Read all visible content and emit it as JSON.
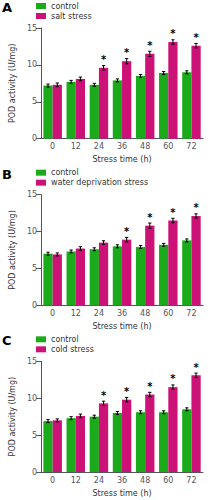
{
  "chart_data": [
    {
      "type": "bar",
      "title": "A",
      "categories": [
        "0",
        "12",
        "24",
        "36",
        "48",
        "60",
        "72"
      ],
      "series": [
        {
          "name": "control",
          "color": "#1aaa1a",
          "values": [
            7.2,
            7.7,
            7.3,
            7.9,
            8.5,
            8.9,
            9.0
          ],
          "errors": [
            0.2,
            0.2,
            0.2,
            0.2,
            0.2,
            0.2,
            0.2
          ]
        },
        {
          "name": "salt stress",
          "color": "#cc1177",
          "values": [
            7.3,
            8.1,
            9.6,
            10.5,
            11.5,
            13.1,
            12.6
          ],
          "errors": [
            0.25,
            0.25,
            0.3,
            0.35,
            0.35,
            0.3,
            0.3
          ]
        }
      ],
      "annotations": [
        {
          "text": "*",
          "category": "24",
          "series": "salt stress"
        },
        {
          "text": "*",
          "category": "36",
          "series": "salt stress"
        },
        {
          "text": "*",
          "category": "48",
          "series": "salt stress"
        },
        {
          "text": "*",
          "category": "60",
          "series": "salt stress"
        },
        {
          "text": "*",
          "category": "72",
          "series": "salt stress"
        }
      ],
      "xlabel": "Stress time (h)",
      "ylabel": "POD activity (U/mg)",
      "ylim": [
        0,
        15
      ],
      "yticks": [
        0,
        5,
        10,
        15
      ],
      "grid": false,
      "legend": "upper left"
    },
    {
      "type": "bar",
      "title": "B",
      "categories": [
        "0",
        "12",
        "24",
        "36",
        "48",
        "60",
        "72"
      ],
      "series": [
        {
          "name": "control",
          "color": "#1aaa1a",
          "values": [
            7.0,
            7.3,
            7.6,
            8.0,
            7.9,
            8.2,
            8.8
          ],
          "errors": [
            0.2,
            0.2,
            0.2,
            0.2,
            0.2,
            0.2,
            0.2
          ]
        },
        {
          "name": "water deprivation stress",
          "color": "#cc1177",
          "values": [
            6.9,
            7.7,
            8.5,
            8.9,
            10.8,
            11.5,
            12.1
          ],
          "errors": [
            0.2,
            0.25,
            0.25,
            0.3,
            0.35,
            0.3,
            0.3
          ]
        }
      ],
      "annotations": [
        {
          "text": "*",
          "category": "36",
          "series": "water deprivation stress"
        },
        {
          "text": "*",
          "category": "48",
          "series": "water deprivation stress"
        },
        {
          "text": "*",
          "category": "60",
          "series": "water deprivation stress"
        },
        {
          "text": "*",
          "category": "72",
          "series": "water deprivation stress"
        }
      ],
      "xlabel": "Stress time (h)",
      "ylabel": "POD activity (U/mg)",
      "ylim": [
        0,
        15
      ],
      "yticks": [
        0,
        5,
        10,
        15
      ],
      "grid": false,
      "legend": "upper left"
    },
    {
      "type": "bar",
      "title": "C",
      "categories": [
        "0",
        "12",
        "24",
        "36",
        "48",
        "60",
        "72"
      ],
      "series": [
        {
          "name": "control",
          "color": "#1aaa1a",
          "values": [
            6.9,
            7.3,
            7.5,
            8.0,
            8.1,
            8.1,
            8.5
          ],
          "errors": [
            0.2,
            0.2,
            0.2,
            0.2,
            0.2,
            0.2,
            0.2
          ]
        },
        {
          "name": "cold stress",
          "color": "#cc1177",
          "values": [
            7.0,
            7.6,
            9.3,
            9.8,
            10.5,
            11.5,
            13.1
          ],
          "errors": [
            0.2,
            0.25,
            0.3,
            0.3,
            0.3,
            0.3,
            0.3
          ]
        }
      ],
      "annotations": [
        {
          "text": "*",
          "category": "24",
          "series": "cold stress"
        },
        {
          "text": "*",
          "category": "36",
          "series": "cold stress"
        },
        {
          "text": "*",
          "category": "48",
          "series": "cold stress"
        },
        {
          "text": "*",
          "category": "60",
          "series": "cold stress"
        },
        {
          "text": "*",
          "category": "72",
          "series": "cold stress"
        }
      ],
      "xlabel": "Stress time (h)",
      "ylabel": "POD activity (U/mg)",
      "ylim": [
        0,
        15
      ],
      "yticks": [
        0,
        5,
        10,
        15
      ],
      "grid": false,
      "legend": "upper left"
    }
  ]
}
